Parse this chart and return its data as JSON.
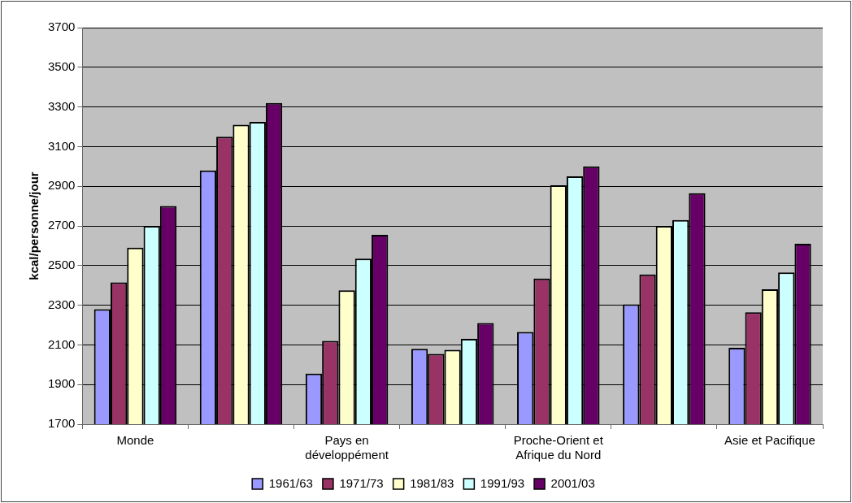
{
  "chart_data": {
    "type": "bar",
    "ylabel": "kcal/personne/jour",
    "categories": [
      "Monde",
      null,
      "Pays en développément",
      null,
      "Proche-Orient et Afrique du Nord",
      null,
      "Asie et Pacifique"
    ],
    "series": [
      {
        "name": "1961/63",
        "color": "#9999ff",
        "values": [
          2280,
          2980,
          1955,
          2080,
          2165,
          2305,
          2085
        ]
      },
      {
        "name": "1971/73",
        "color": "#993366",
        "values": [
          2415,
          3150,
          2120,
          2055,
          2435,
          2455,
          2265
        ]
      },
      {
        "name": "1981/83",
        "color": "#ffffcc",
        "values": [
          2590,
          3210,
          2375,
          2075,
          2905,
          2700,
          2380
        ]
      },
      {
        "name": "1991/93",
        "color": "#ccffff",
        "values": [
          2700,
          3225,
          2535,
          2130,
          2950,
          2730,
          2465
        ]
      },
      {
        "name": "2001/03",
        "color": "#660066",
        "values": [
          2800,
          3320,
          2655,
          2210,
          3000,
          2865,
          2610
        ]
      }
    ],
    "ylim": [
      1700,
      3700
    ],
    "yticks": [
      1700,
      1900,
      2100,
      2300,
      2500,
      2700,
      2900,
      3100,
      3300,
      3500,
      3700
    ],
    "grid": "y",
    "legend": "bottom"
  }
}
